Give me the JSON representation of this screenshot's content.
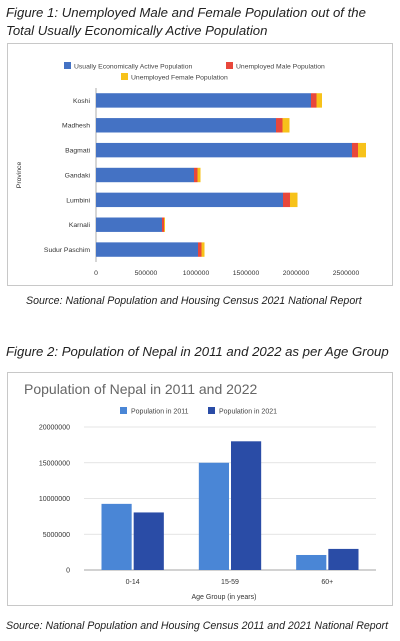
{
  "figure1": {
    "caption": "Figure 1: Unemployed Male and Female Population out of the Total Usually Economically Active Population",
    "source": "Source: National Population and Housing Census 2021 National Report"
  },
  "figure2": {
    "caption": "Figure 2: Population of Nepal in 2011 and 2022 as per Age Group",
    "source": "Source: National Population and Housing Census 2011 and 2021 National Report"
  },
  "colors": {
    "active": "#4472c4",
    "male": "#e8473b",
    "female": "#f7c21a",
    "pop2011": "#4a86d6",
    "pop2021": "#2a4ca6"
  },
  "chart_data": [
    {
      "type": "bar",
      "orientation": "horizontal",
      "stacked": true,
      "title": "",
      "xlabel": "",
      "ylabel": "Province",
      "categories": [
        "Koshi",
        "Madhesh",
        "Bagmati",
        "Gandaki",
        "Lumbini",
        "Karnali",
        "Sudur Paschim"
      ],
      "series": [
        {
          "name": "Usually Economically Active Population",
          "values": [
            2150000,
            1800000,
            2560000,
            980000,
            1870000,
            660000,
            1020000
          ]
        },
        {
          "name": "Unemployed Male Population",
          "values": [
            55000,
            65000,
            60000,
            35000,
            70000,
            20000,
            35000
          ]
        },
        {
          "name": "Unemployed Female Population",
          "values": [
            55000,
            70000,
            80000,
            30000,
            75000,
            10000,
            30000
          ]
        }
      ],
      "xlim": [
        0,
        2700000
      ],
      "xticks": [
        0,
        500000,
        1000000,
        1500000,
        2000000,
        2500000
      ],
      "xtick_labels": [
        "0",
        "500000",
        "1000000",
        "1500000",
        "2000000",
        "2500000"
      ],
      "legend_position": "top",
      "grid": false
    },
    {
      "type": "bar",
      "orientation": "vertical",
      "title": "Population of Nepal in 2011 and 2022",
      "xlabel": "Age Group (in years)",
      "ylabel": "",
      "categories": [
        "0-14",
        "15-59",
        "60+"
      ],
      "series": [
        {
          "name": "Population in 2011",
          "values": [
            9250000,
            15000000,
            2100000
          ]
        },
        {
          "name": "Population in 2021",
          "values": [
            8050000,
            18000000,
            2950000
          ]
        }
      ],
      "ylim": [
        0,
        20000000
      ],
      "yticks": [
        0,
        5000000,
        10000000,
        15000000,
        20000000
      ],
      "ytick_labels": [
        "0",
        "5000000",
        "10000000",
        "15000000",
        "20000000"
      ],
      "legend_position": "top",
      "grid": true
    }
  ]
}
